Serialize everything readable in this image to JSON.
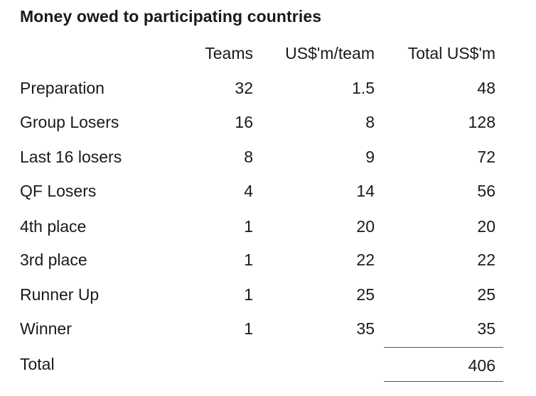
{
  "title": "Money owed to participating countries",
  "headers": {
    "teams": "Teams",
    "per_team": "US$'m/team",
    "total": "Total US$'m"
  },
  "rows": [
    {
      "label": "Preparation",
      "teams": "32",
      "per_team": "1.5",
      "total": "48"
    },
    {
      "label": "Group Losers",
      "teams": "16",
      "per_team": "8",
      "total": "128"
    },
    {
      "label": "Last 16 losers",
      "teams": "8",
      "per_team": "9",
      "total": "72"
    },
    {
      "label": "QF Losers",
      "teams": "4",
      "per_team": "14",
      "total": "56"
    },
    {
      "label": "4th place",
      "teams": "1",
      "per_team": "20",
      "total": "20"
    },
    {
      "label": "3rd place",
      "teams": "1",
      "per_team": "22",
      "total": "22"
    },
    {
      "label": "Runner Up",
      "teams": "1",
      "per_team": "25",
      "total": "25"
    },
    {
      "label": "Winner",
      "teams": "1",
      "per_team": "35",
      "total": "35"
    }
  ],
  "total_row": {
    "label": "Total",
    "total": "406"
  }
}
